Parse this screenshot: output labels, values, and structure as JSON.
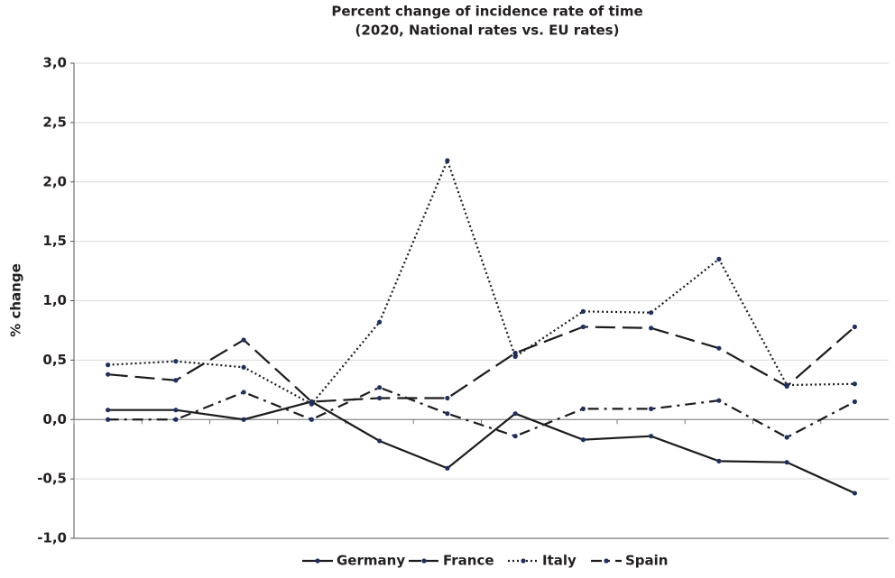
{
  "chart_data": {
    "type": "line",
    "title": "Percent change of incidence rate of time",
    "subtitle": "(2020, National rates vs. EU rates)",
    "y_label": "% change",
    "categories": [
      null,
      null,
      null,
      null,
      null,
      null,
      null,
      null,
      null,
      null,
      null,
      null
    ],
    "series": [
      {
        "name": "Germany",
        "color": "#1c1c1c",
        "dash": "solid",
        "values": [
          0.08,
          0.08,
          0.0,
          0.15,
          -0.18,
          -0.41,
          0.05,
          -0.17,
          -0.14,
          -0.35,
          -0.36,
          -0.62
        ]
      },
      {
        "name": "France",
        "color": "#1c1c1c",
        "dash": "dashed",
        "values": [
          0.38,
          0.33,
          0.67,
          0.15,
          0.18,
          0.18,
          0.56,
          0.78,
          0.77,
          0.6,
          0.28,
          0.78
        ]
      },
      {
        "name": "Italy",
        "color": "#1c1c1c",
        "dash": "dotted",
        "values": [
          0.46,
          0.49,
          0.44,
          0.13,
          0.82,
          2.18,
          0.53,
          0.91,
          0.9,
          1.35,
          0.29,
          0.3
        ]
      },
      {
        "name": "Spain",
        "color": "#1c1c1c",
        "dash": "dashdot",
        "values": [
          0.0,
          0.0,
          0.23,
          0.0,
          0.27,
          0.05,
          -0.14,
          0.09,
          0.09,
          0.16,
          -0.15,
          0.15
        ]
      }
    ],
    "ylim": [
      -1.0,
      3.0
    ],
    "yticks": [
      {
        "value": -1.0,
        "label": "-1,0"
      },
      {
        "value": -0.5,
        "label": "-0,5"
      },
      {
        "value": 0.0,
        "label": "0,0"
      },
      {
        "value": 0.5,
        "label": "0,5"
      },
      {
        "value": 1.0,
        "label": "1,0"
      },
      {
        "value": 1.5,
        "label": "1,5"
      },
      {
        "value": 2.0,
        "label": "2,0"
      },
      {
        "value": 2.5,
        "label": "2,5"
      },
      {
        "value": 3.0,
        "label": "3,0"
      }
    ],
    "grid": true,
    "legend": "bottom"
  }
}
